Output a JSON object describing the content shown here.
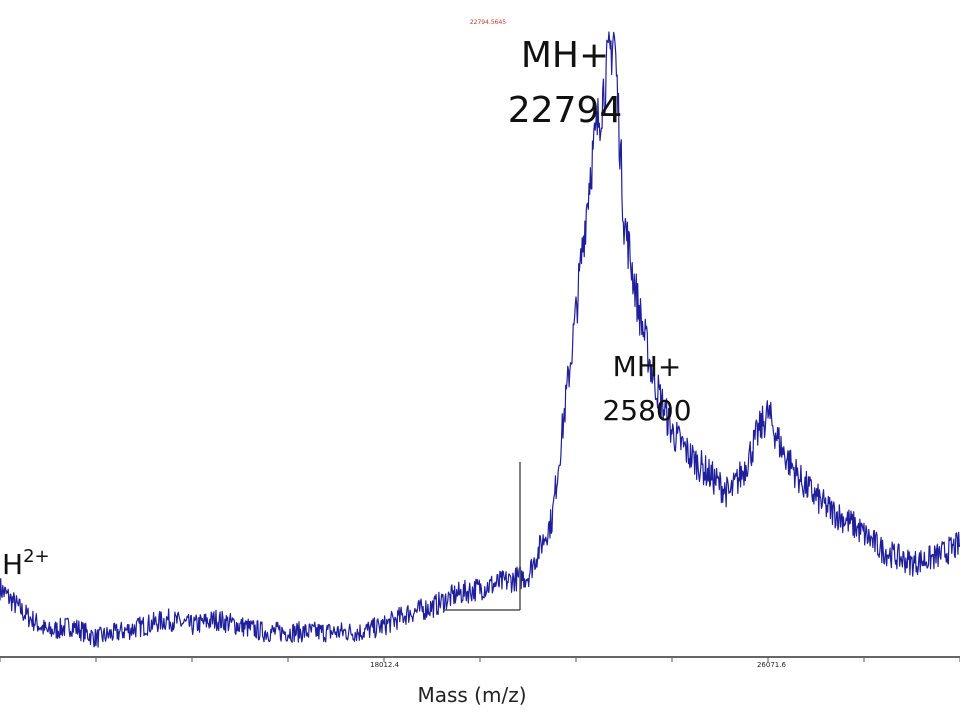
{
  "chart_data": {
    "type": "line",
    "title": "",
    "xlabel": "Mass (m/z)",
    "ylabel": "",
    "xlim": [
      10000,
      30000
    ],
    "ylim": [
      0,
      100
    ],
    "line_color": "#1f1f9c",
    "tick_labels": [
      {
        "x": 18012.4,
        "label": "18012.4"
      },
      {
        "x": 26071.6,
        "label": "26071.6"
      }
    ],
    "peak_label": "22794.5645",
    "annotations": [
      {
        "id": "mh-22794",
        "lines": [
          "MH+",
          "22794"
        ],
        "x": 22794
      },
      {
        "id": "mh-25800",
        "lines": [
          "MH+",
          "25800"
        ],
        "x": 25800
      },
      {
        "id": "mh2",
        "text_main": "H",
        "text_sup": "2+",
        "x": 10000
      }
    ],
    "series": [
      {
        "values": [
          {
            "x": 10000,
            "y": 11
          },
          {
            "x": 10500,
            "y": 7
          },
          {
            "x": 11000,
            "y": 4
          },
          {
            "x": 11500,
            "y": 5
          },
          {
            "x": 12000,
            "y": 3
          },
          {
            "x": 12500,
            "y": 4
          },
          {
            "x": 13000,
            "y": 5
          },
          {
            "x": 13500,
            "y": 6
          },
          {
            "x": 14000,
            "y": 5
          },
          {
            "x": 14500,
            "y": 6
          },
          {
            "x": 15000,
            "y": 5
          },
          {
            "x": 15500,
            "y": 4
          },
          {
            "x": 16000,
            "y": 4
          },
          {
            "x": 16500,
            "y": 4
          },
          {
            "x": 17000,
            "y": 4
          },
          {
            "x": 17500,
            "y": 4
          },
          {
            "x": 18000,
            "y": 5
          },
          {
            "x": 18500,
            "y": 7
          },
          {
            "x": 19000,
            "y": 8
          },
          {
            "x": 19500,
            "y": 10
          },
          {
            "x": 20000,
            "y": 11
          },
          {
            "x": 20500,
            "y": 12
          },
          {
            "x": 21000,
            "y": 13
          },
          {
            "x": 21500,
            "y": 22
          },
          {
            "x": 22000,
            "y": 55
          },
          {
            "x": 22300,
            "y": 78
          },
          {
            "x": 22600,
            "y": 92
          },
          {
            "x": 22794,
            "y": 100
          },
          {
            "x": 23000,
            "y": 70
          },
          {
            "x": 23300,
            "y": 56
          },
          {
            "x": 23600,
            "y": 45
          },
          {
            "x": 24000,
            "y": 36
          },
          {
            "x": 24400,
            "y": 32
          },
          {
            "x": 24800,
            "y": 29
          },
          {
            "x": 25200,
            "y": 26
          },
          {
            "x": 25500,
            "y": 30
          },
          {
            "x": 25800,
            "y": 36
          },
          {
            "x": 26000,
            "y": 39
          },
          {
            "x": 26300,
            "y": 33
          },
          {
            "x": 26700,
            "y": 28
          },
          {
            "x": 27200,
            "y": 24
          },
          {
            "x": 27800,
            "y": 21
          },
          {
            "x": 28400,
            "y": 17
          },
          {
            "x": 29000,
            "y": 15
          },
          {
            "x": 29500,
            "y": 16
          },
          {
            "x": 30000,
            "y": 18
          }
        ]
      }
    ],
    "grid": false,
    "legend": "none"
  }
}
